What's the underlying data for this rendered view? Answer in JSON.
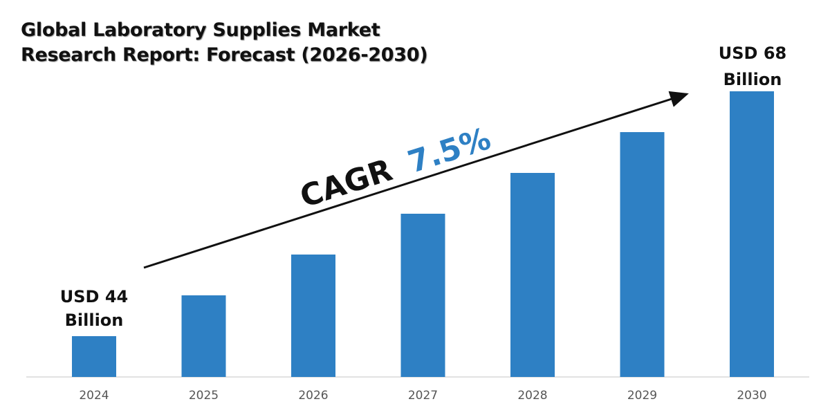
{
  "title_line1": "Global Laboratory Supplies Market",
  "title_line2": "Research Report: Forecast (2026-2030)",
  "cagr_label": "CAGR",
  "cagr_value": "7.5%",
  "start_label_line1": "USD 44",
  "start_label_line2": "Billion",
  "end_label_line1": "USD 68",
  "end_label_line2": "Billion",
  "colors": {
    "bar": "#2E80C4",
    "cagr_value": "#2E80C4",
    "text": "#111111"
  },
  "chart_data": {
    "type": "bar",
    "title": "Global Laboratory Supplies Market Research Report: Forecast (2026-2030)",
    "categories": [
      "2024",
      "2025",
      "2026",
      "2027",
      "2028",
      "2029",
      "2030"
    ],
    "values": [
      44,
      48,
      52,
      56,
      60,
      64,
      68
    ],
    "ylim": [
      40,
      68
    ],
    "xlabel": "",
    "ylabel": "",
    "grid": false,
    "annotations": [
      "USD 44 Billion",
      "USD 68 Billion",
      "CAGR 7.5%"
    ]
  }
}
